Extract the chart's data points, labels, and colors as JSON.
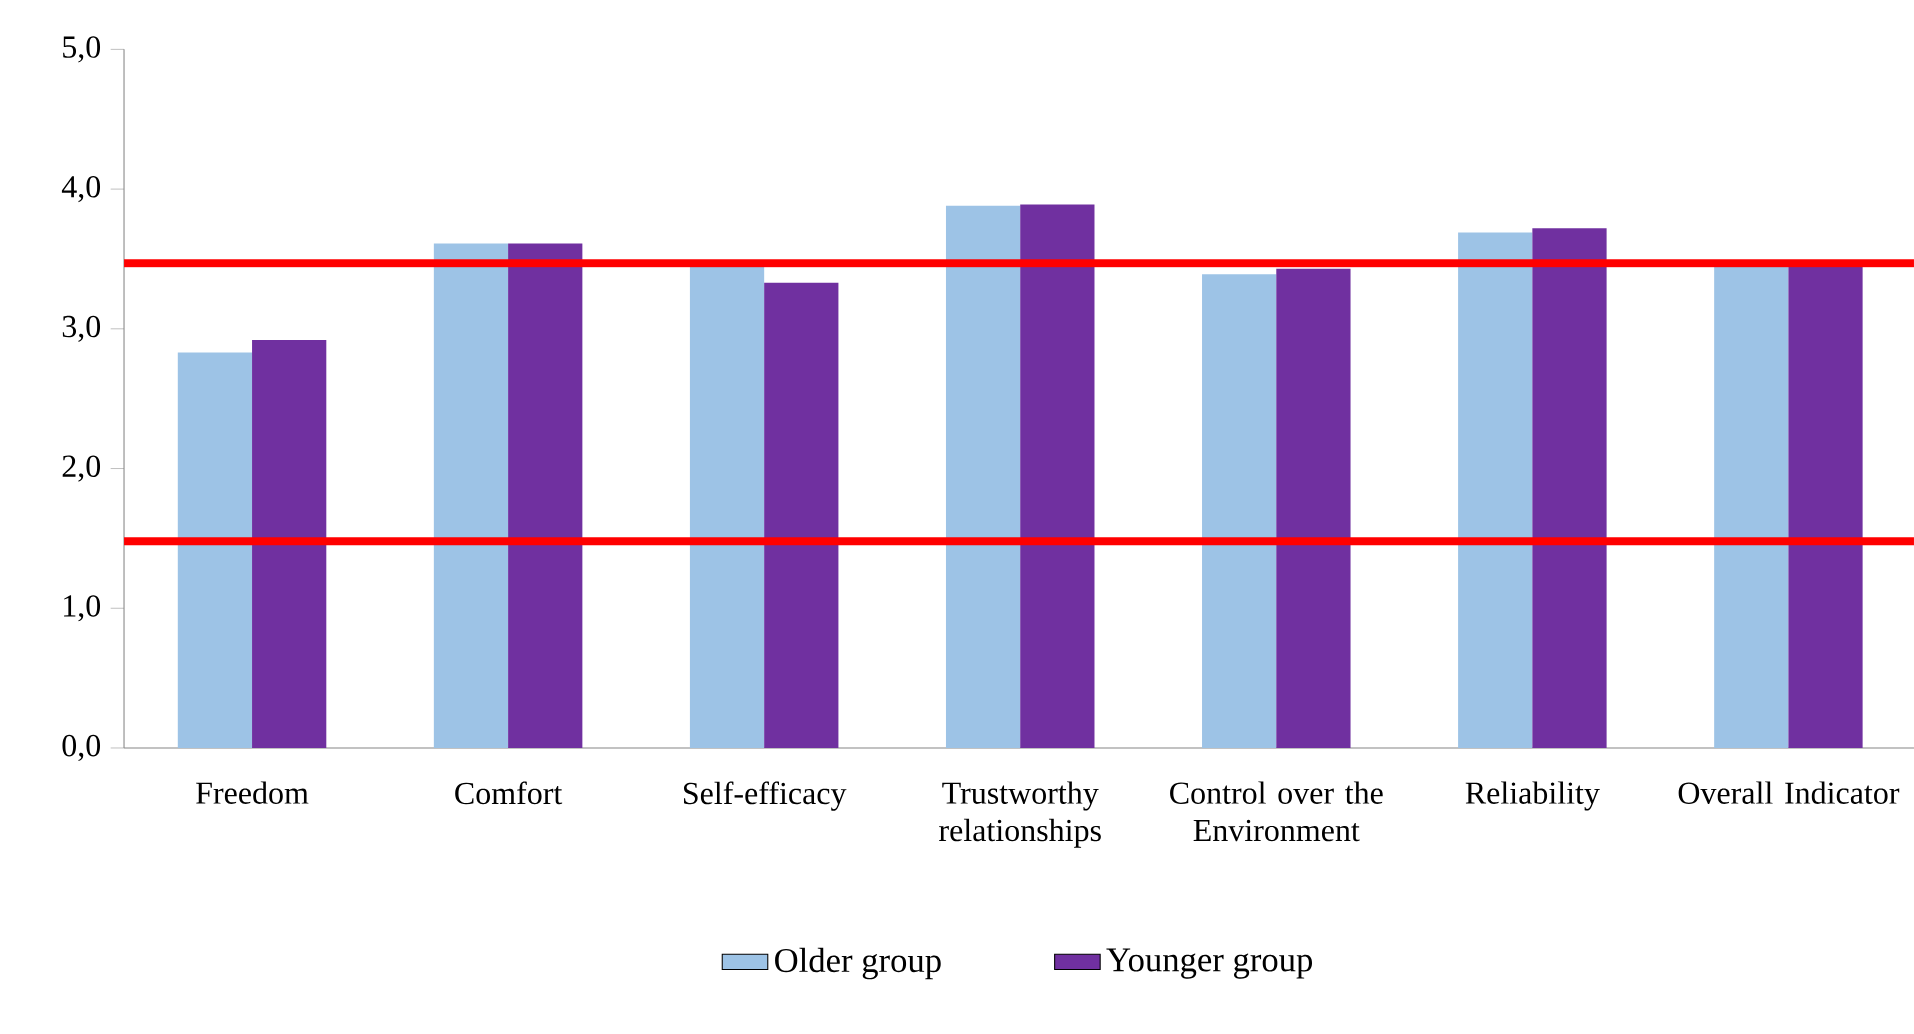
{
  "chart_data": {
    "type": "bar",
    "categories": [
      "Freedom",
      "Comfort",
      "Self-efficacy",
      "Trustworthy relationships",
      "Control over the Environment",
      "Reliability",
      "Overall Indicator"
    ],
    "series": [
      {
        "name": "Older group",
        "color": "#9dc3e6",
        "values": [
          2.83,
          3.61,
          3.45,
          3.88,
          3.39,
          3.69,
          3.46
        ]
      },
      {
        "name": "Younger group",
        "color": "#7030a0",
        "values": [
          2.92,
          3.61,
          3.33,
          3.89,
          3.43,
          3.72,
          3.48
        ]
      }
    ],
    "ylim": [
      0,
      5
    ],
    "yticks": [
      {
        "value": 0,
        "label": "0,0"
      },
      {
        "value": 1,
        "label": "1,0"
      },
      {
        "value": 2,
        "label": "2,0"
      },
      {
        "value": 3,
        "label": "3,0"
      },
      {
        "value": 4,
        "label": "4,0"
      },
      {
        "value": 5,
        "label": "5,0"
      }
    ],
    "ref_lines": [
      {
        "axis": "y",
        "value": 3.47,
        "color": "#ff0000"
      },
      {
        "axis": "y",
        "value": 1.48,
        "color": "#ff0000"
      }
    ],
    "grid": false,
    "legend": "bottom"
  }
}
